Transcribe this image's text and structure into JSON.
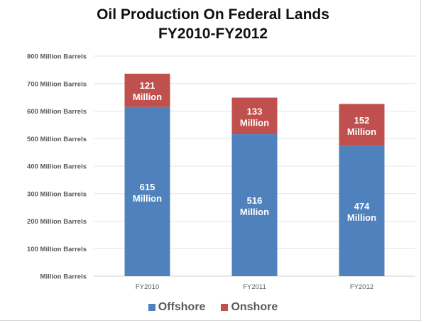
{
  "chart_data": {
    "type": "bar",
    "stacked": true,
    "title": "Oil Production On Federal Lands",
    "subtitle": "FY2010-FY2012",
    "xlabel": "",
    "ylabel": "",
    "categories": [
      "FY2010",
      "FY2011",
      "FY2012"
    ],
    "series": [
      {
        "name": "Offshore",
        "color": "#4f81bd",
        "values": [
          615,
          516,
          474
        ],
        "labels": [
          "615 Million",
          "516 Million",
          "474 Million"
        ]
      },
      {
        "name": "Onshore",
        "color": "#c0504d",
        "values": [
          121,
          133,
          152
        ],
        "labels": [
          "121 Million",
          "133 Million",
          "152 Million"
        ]
      }
    ],
    "ylim": [
      0,
      800
    ],
    "yticks": [
      0,
      100,
      200,
      300,
      400,
      500,
      600,
      700,
      800
    ],
    "ytick_labels": [
      "Million Barrels",
      "100 Million Barrels",
      "200 Million Barrels",
      "300 Million Barrels",
      "400 Million Barrels",
      "500 Million Barrels",
      "600 Million Barrels",
      "700 Million Barrels",
      "800 Million Barrels"
    ],
    "grid": true,
    "legend_position": "bottom"
  }
}
